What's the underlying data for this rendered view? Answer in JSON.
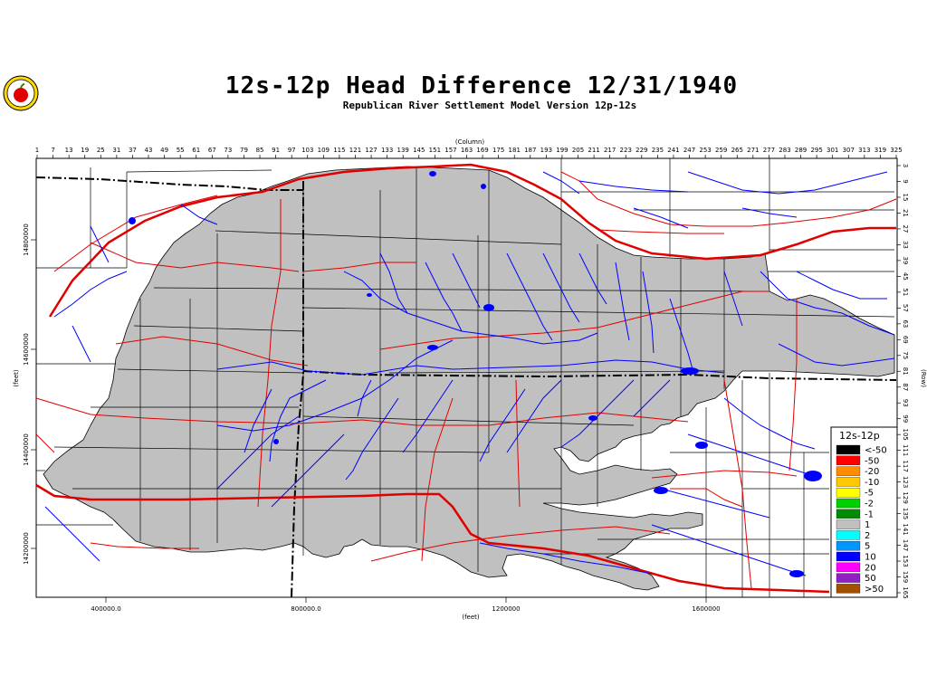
{
  "header": {
    "title": "12s-12p  Head  Difference  12/31/1940",
    "subtitle": "Republican  River  Settlement  Model  Version  12p-12s"
  },
  "axes": {
    "top_label": "(Column)",
    "bottom_label": "(feet)",
    "left_label": "(feet)",
    "right_label": "(Row)",
    "columns": [
      "1",
      "7",
      "13",
      "19",
      "25",
      "31",
      "37",
      "43",
      "49",
      "55",
      "61",
      "67",
      "73",
      "79",
      "85",
      "91",
      "97",
      "103",
      "109",
      "115",
      "121",
      "127",
      "133",
      "139",
      "145",
      "151",
      "157",
      "163",
      "169",
      "175",
      "181",
      "187",
      "193",
      "199",
      "205",
      "211",
      "217",
      "223",
      "229",
      "235",
      "241",
      "247",
      "253",
      "259",
      "265",
      "271",
      "277",
      "283",
      "289",
      "295",
      "301",
      "307",
      "313",
      "319",
      "325"
    ],
    "rows": [
      "3",
      "9",
      "15",
      "21",
      "27",
      "33",
      "39",
      "45",
      "51",
      "57",
      "63",
      "69",
      "75",
      "81",
      "87",
      "93",
      "99",
      "105",
      "111",
      "117",
      "123",
      "129",
      "135",
      "141",
      "147",
      "153",
      "159",
      "165"
    ],
    "x_ticks": [
      "400000.0",
      "800000.0",
      "1200000",
      "1600000"
    ],
    "y_ticks": [
      "14800000",
      "14600000",
      "14400000",
      "14200000"
    ]
  },
  "legend": {
    "title": "12s-12p",
    "items": [
      {
        "label": "<-50",
        "color": "#000000"
      },
      {
        "label": "-50",
        "color": "#ff0000"
      },
      {
        "label": "-20",
        "color": "#ff8c00"
      },
      {
        "label": "-10",
        "color": "#ffc800"
      },
      {
        "label": "-5",
        "color": "#ffff00"
      },
      {
        "label": "-2",
        "color": "#00d000"
      },
      {
        "label": "-1",
        "color": "#008c00"
      },
      {
        "label": "1",
        "color": "#c0c0c0"
      },
      {
        "label": "2",
        "color": "#00ffff"
      },
      {
        "label": "5",
        "color": "#0096ff"
      },
      {
        "label": "10",
        "color": "#0000ff"
      },
      {
        "label": "20",
        "color": "#ff00ff"
      },
      {
        "label": "50",
        "color": "#9020c0"
      },
      {
        "label": ">50",
        "color": "#a05000"
      }
    ]
  },
  "colors": {
    "model_area": "#c0c0c0",
    "streams": "#0000ff",
    "roads": "#e00000",
    "counties": "#000000",
    "frame": "#000000"
  }
}
